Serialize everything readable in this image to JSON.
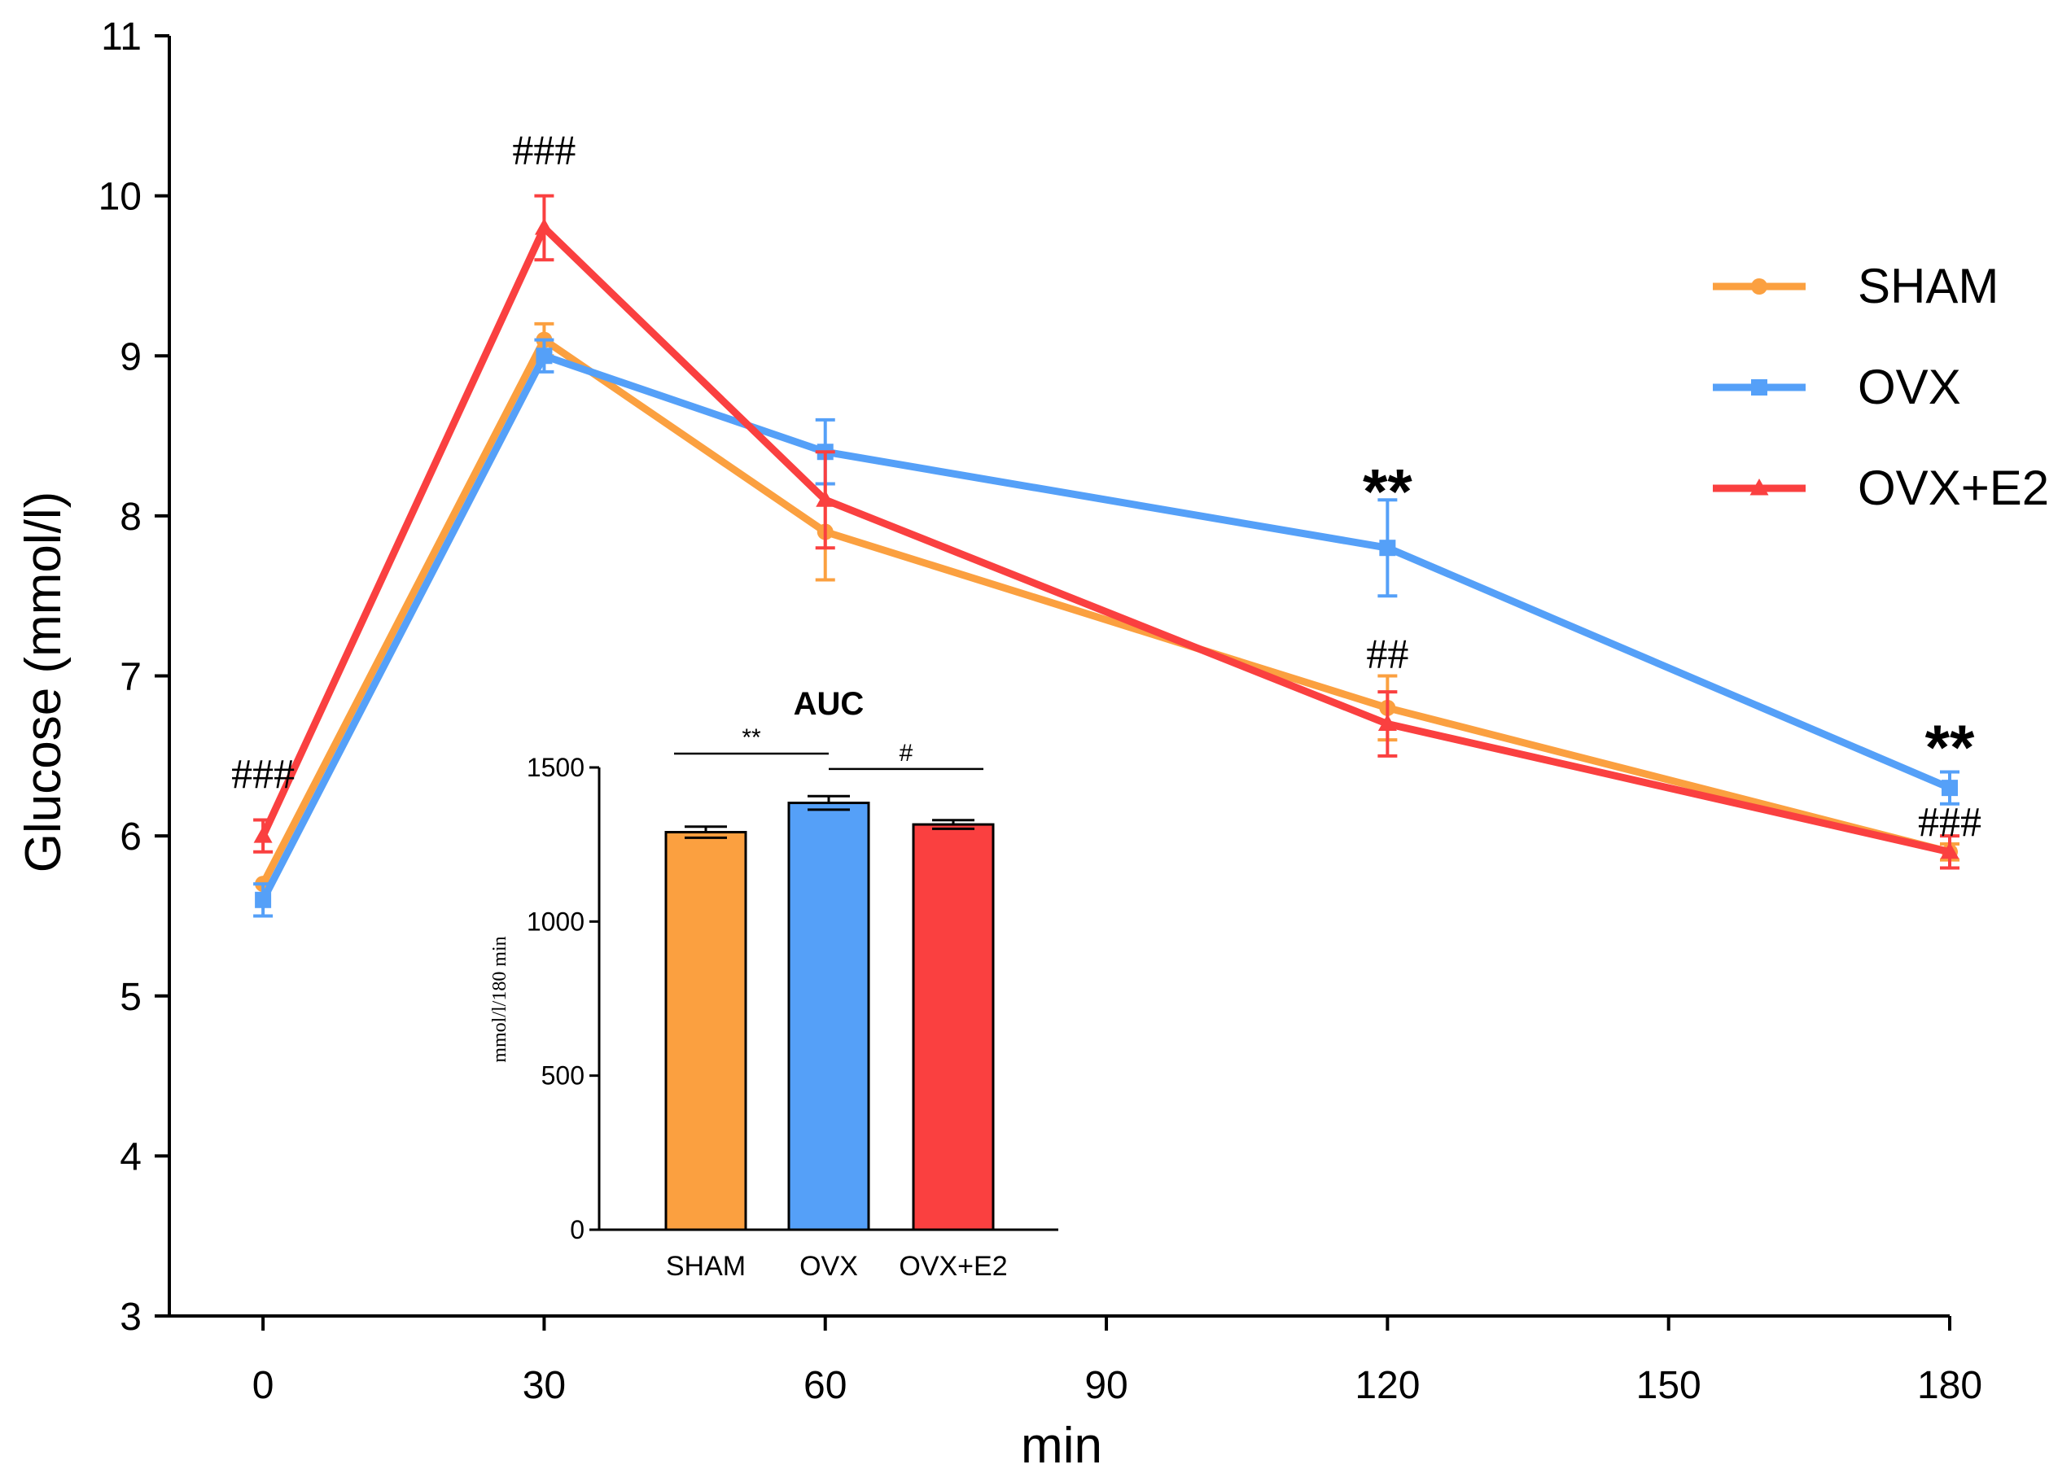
{
  "chart_data": [
    {
      "type": "line",
      "xlabel": "min",
      "ylabel": "Glucose (mmol/l)",
      "xlim": [
        -10,
        180
      ],
      "ylim": [
        3,
        11
      ],
      "x": [
        0,
        30,
        60,
        120,
        180
      ],
      "xticks": [
        0,
        30,
        60,
        90,
        120,
        150,
        180
      ],
      "xtick_labels": [
        "0",
        "30",
        "60",
        "90",
        "120",
        "150",
        "180"
      ],
      "yticks": [
        3,
        4,
        5,
        6,
        7,
        8,
        9,
        10,
        11
      ],
      "ytick_labels": [
        "3",
        "4",
        "5",
        "6",
        "7",
        "8",
        "9",
        "10",
        "11"
      ],
      "legend_position": "top-right",
      "series": [
        {
          "name": "SHAM",
          "color": "#FBA040",
          "marker": "circle",
          "values": [
            5.7,
            9.1,
            7.9,
            6.8,
            5.9
          ],
          "errors": [
            0.0,
            0.1,
            0.3,
            0.2,
            0.05
          ]
        },
        {
          "name": "OVX",
          "color": "#55A0F8",
          "marker": "square",
          "values": [
            5.6,
            9.0,
            8.4,
            7.8,
            6.3
          ],
          "errors": [
            0.1,
            0.1,
            0.2,
            0.3,
            0.1
          ]
        },
        {
          "name": "OVX+E2",
          "color": "#FA4040",
          "marker": "triangle",
          "values": [
            6.0,
            9.8,
            8.1,
            6.7,
            5.9
          ],
          "errors": [
            0.1,
            0.2,
            0.3,
            0.2,
            0.1
          ]
        }
      ],
      "annotations": [
        {
          "text": "###",
          "x": 0,
          "y": 6.3,
          "style": "hash"
        },
        {
          "text": "###",
          "x": 30,
          "y": 10.2,
          "style": "hash"
        },
        {
          "text": "**",
          "x": 120,
          "y": 8.2,
          "style": "star"
        },
        {
          "text": "##",
          "x": 120,
          "y": 7.05,
          "style": "hash"
        },
        {
          "text": "**",
          "x": 180,
          "y": 6.6,
          "style": "star"
        },
        {
          "text": "###",
          "x": 180,
          "y": 6.0,
          "style": "hash"
        }
      ]
    },
    {
      "type": "bar",
      "title": "AUC",
      "ylabel": "mmol/l/180 min",
      "categories": [
        "SHAM",
        "OVX",
        "OVX+E2"
      ],
      "values": [
        1290,
        1385,
        1315
      ],
      "errors": [
        18,
        22,
        14
      ],
      "colors": [
        "#FBA040",
        "#55A0F8",
        "#FA4040"
      ],
      "ylim": [
        0,
        1500
      ],
      "yticks": [
        0,
        500,
        1000,
        1500
      ],
      "ytick_labels": [
        "0",
        "500",
        "1000",
        "1500"
      ],
      "significance": [
        {
          "from": 0,
          "to": 1,
          "text": "**",
          "y": 1545
        },
        {
          "from": 1,
          "to": 2,
          "text": "#",
          "y": 1495
        }
      ]
    }
  ]
}
